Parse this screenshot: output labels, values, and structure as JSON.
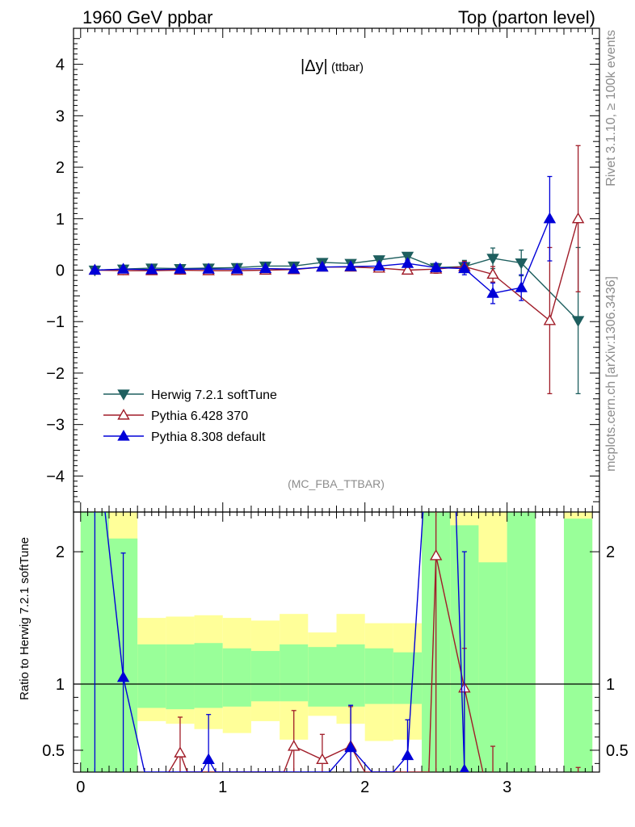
{
  "header": {
    "left": "1960 GeV ppbar",
    "right": "Top (parton level)"
  },
  "side": {
    "rivet": "Rivet 3.1.10, ≥ 100k events",
    "mcplots": "mcplots.cern.ch [arXiv:1306.3436]"
  },
  "chart_data": [
    {
      "type": "line",
      "title": "|Δy| (ttbar)",
      "title_main": "|Δy|",
      "title_sub": "(ttbar)",
      "analysis_tag": "(MC_FBA_TTBAR)",
      "xlim": [
        -0.05,
        3.65
      ],
      "ylim": [
        -4.7,
        4.7
      ],
      "yticks": [
        -4,
        -3,
        -2,
        -1,
        0,
        1,
        2,
        3,
        4
      ],
      "ytick_labels": [
        "−4",
        "−3",
        "−2",
        "−1",
        "0",
        "1",
        "2",
        "3",
        "4"
      ],
      "legend_position": "bottom-left",
      "series": [
        {
          "name": "Herwig 7.2.1 softTune",
          "color": "#1e5f5f",
          "marker": "triangle-down-filled",
          "x": [
            0.1,
            0.3,
            0.5,
            0.7,
            0.9,
            1.1,
            1.3,
            1.5,
            1.7,
            1.9,
            2.1,
            2.3,
            2.5,
            2.7,
            2.9,
            3.1,
            3.5
          ],
          "y": [
            0.0,
            0.02,
            0.04,
            0.03,
            0.04,
            0.05,
            0.08,
            0.08,
            0.15,
            0.13,
            0.2,
            0.27,
            0.05,
            0.07,
            0.23,
            0.14,
            -0.98
          ],
          "err": [
            0.03,
            0.03,
            0.03,
            0.03,
            0.03,
            0.03,
            0.03,
            0.03,
            0.04,
            0.04,
            0.05,
            0.06,
            0.08,
            0.12,
            0.2,
            0.25,
            1.42
          ]
        },
        {
          "name": "Pythia 6.428 370",
          "color": "#a01c28",
          "marker": "triangle-up-open",
          "x": [
            0.1,
            0.3,
            0.5,
            0.7,
            0.9,
            1.1,
            1.3,
            1.5,
            1.7,
            1.9,
            2.1,
            2.3,
            2.5,
            2.7,
            2.9,
            3.3,
            3.5
          ],
          "y": [
            0.0,
            -0.01,
            -0.01,
            0.0,
            -0.01,
            -0.01,
            0.0,
            0.01,
            0.06,
            0.06,
            0.04,
            0.0,
            0.02,
            0.07,
            -0.08,
            -0.98,
            1.0
          ],
          "err": [
            0.04,
            0.04,
            0.04,
            0.04,
            0.04,
            0.04,
            0.04,
            0.04,
            0.05,
            0.05,
            0.06,
            0.06,
            0.08,
            0.1,
            0.15,
            1.42,
            1.42
          ]
        },
        {
          "name": "Pythia 8.308 default",
          "color": "#0000d8",
          "marker": "triangle-up-filled",
          "x": [
            0.1,
            0.3,
            0.5,
            0.7,
            0.9,
            1.1,
            1.3,
            1.5,
            1.7,
            1.9,
            2.1,
            2.3,
            2.5,
            2.7,
            2.9,
            3.1,
            3.3
          ],
          "y": [
            0.0,
            0.02,
            0.01,
            0.02,
            0.02,
            0.02,
            0.03,
            0.02,
            0.06,
            0.07,
            0.08,
            0.13,
            0.05,
            0.03,
            -0.45,
            -0.34,
            1.0
          ],
          "err": [
            0.03,
            0.03,
            0.03,
            0.03,
            0.03,
            0.03,
            0.03,
            0.03,
            0.04,
            0.04,
            0.05,
            0.06,
            0.08,
            0.12,
            0.2,
            0.25,
            0.82
          ]
        }
      ]
    },
    {
      "type": "line",
      "ylabel": "Ratio to Herwig 7.2.1 softTune",
      "xlim": [
        -0.05,
        3.65
      ],
      "ylim": [
        0.335,
        2.3
      ],
      "xticks": [
        0,
        1,
        2,
        3
      ],
      "xtick_labels": [
        "0",
        "1",
        "2",
        "3"
      ],
      "yticks": [
        0.5,
        1,
        2
      ],
      "ytick_labels": [
        "0.5",
        "1",
        "2"
      ],
      "reference_line": 1,
      "uncertainty_bands": {
        "yellow_color": "#ffff99",
        "green_color": "#99ff99",
        "bins": [
          {
            "x0": 0.0,
            "x1": 0.2,
            "y0": 0.0,
            "y1": 3.0,
            "g0": 0.0,
            "g1": 3.0
          },
          {
            "x0": 0.2,
            "x1": 0.4,
            "y0": 0.0,
            "y1": 3.0,
            "g0": 0.0,
            "g1": 2.1
          },
          {
            "x0": 0.4,
            "x1": 0.6,
            "y0": 0.72,
            "y1": 1.5,
            "g0": 0.82,
            "g1": 1.3
          },
          {
            "x0": 0.6,
            "x1": 0.8,
            "y0": 0.7,
            "y1": 1.51,
            "g0": 0.81,
            "g1": 1.3
          },
          {
            "x0": 0.8,
            "x1": 1.0,
            "y0": 0.66,
            "y1": 1.52,
            "g0": 0.82,
            "g1": 1.31
          },
          {
            "x0": 1.0,
            "x1": 1.2,
            "y0": 0.63,
            "y1": 1.5,
            "g0": 0.83,
            "g1": 1.27
          },
          {
            "x0": 1.2,
            "x1": 1.4,
            "y0": 0.72,
            "y1": 1.48,
            "g0": 0.87,
            "g1": 1.25
          },
          {
            "x0": 1.4,
            "x1": 1.6,
            "y0": 0.58,
            "y1": 1.53,
            "g0": 0.87,
            "g1": 1.3
          },
          {
            "x0": 1.6,
            "x1": 1.8,
            "y0": 0.76,
            "y1": 1.39,
            "g0": 0.83,
            "g1": 1.28
          },
          {
            "x0": 1.8,
            "x1": 2.0,
            "y0": 0.7,
            "y1": 1.53,
            "g0": 0.83,
            "g1": 1.3
          },
          {
            "x0": 2.0,
            "x1": 2.2,
            "y0": 0.57,
            "y1": 1.46,
            "g0": 0.85,
            "g1": 1.27
          },
          {
            "x0": 2.2,
            "x1": 2.4,
            "y0": 0.58,
            "y1": 1.46,
            "g0": 0.85,
            "g1": 1.24
          },
          {
            "x0": 2.4,
            "x1": 2.6,
            "y0": 0.0,
            "y1": 3.0,
            "g0": 0.0,
            "g1": 3.0
          },
          {
            "x0": 2.6,
            "x1": 2.8,
            "y0": 0.0,
            "y1": 3.0,
            "g0": 0.0,
            "g1": 2.2
          },
          {
            "x0": 2.8,
            "x1": 3.0,
            "y0": 0.0,
            "y1": 3.0,
            "g0": 0.0,
            "g1": 1.92
          },
          {
            "x0": 3.0,
            "x1": 3.2,
            "y0": 0.0,
            "y1": 3.0,
            "g0": 0.0,
            "g1": 3.0
          },
          {
            "x0": 3.4,
            "x1": 3.6,
            "y0": 0.0,
            "y1": 3.0,
            "g0": 0.0,
            "g1": 2.25
          }
        ]
      },
      "series": [
        {
          "color": "#a01c28",
          "marker": "triangle-up-open",
          "x": [
            0.7,
            1.5,
            1.7,
            1.9,
            2.5,
            2.7
          ],
          "y": [
            0.48,
            0.53,
            0.43,
            0.53,
            1.97,
            0.97
          ],
          "err_low": [
            0.25,
            0.28,
            0.22,
            0.3,
            1.7,
            0.7
          ],
          "err_high": [
            0.27,
            0.27,
            0.19,
            0.3,
            0.4,
            0.3
          ],
          "trace": [
            [
              0.62,
              0.335
            ],
            [
              0.7,
              0.48
            ],
            [
              0.75,
              0.335
            ],
            [
              1.43,
              0.335
            ],
            [
              1.5,
              0.53
            ],
            [
              1.7,
              0.43
            ],
            [
              1.9,
              0.53
            ],
            [
              2.0,
              0.335
            ],
            [
              2.45,
              0.335
            ],
            [
              2.5,
              1.97
            ],
            [
              2.7,
              0.97
            ],
            [
              2.83,
              0.335
            ]
          ],
          "extra_bars": [
            [
              2.9,
              0.26,
              0.53
            ],
            [
              3.5,
              0.2,
              0.37
            ]
          ]
        },
        {
          "color": "#0000d8",
          "marker": "triangle-up-filled",
          "x": [
            0.3,
            0.9,
            1.9,
            2.3,
            2.7
          ],
          "y": [
            1.05,
            0.43,
            0.52,
            0.46,
            0.35
          ],
          "err_low": [
            0.9,
            0.2,
            0.3,
            0.25,
            0.2
          ],
          "err_high": [
            0.94,
            0.34,
            0.32,
            0.27,
            1.65
          ],
          "trace": [
            [
              0.1,
              3.0
            ],
            [
              0.3,
              1.05
            ],
            [
              0.45,
              0.335
            ],
            [
              0.85,
              0.335
            ],
            [
              0.9,
              0.43
            ],
            [
              0.95,
              0.335
            ],
            [
              1.75,
              0.335
            ],
            [
              1.9,
              0.52
            ],
            [
              2.05,
              0.335
            ],
            [
              2.2,
              0.335
            ],
            [
              2.3,
              0.46
            ],
            [
              2.45,
              3.0
            ],
            [
              2.62,
              3.0
            ],
            [
              2.7,
              0.35
            ],
            [
              2.72,
              0.335
            ]
          ],
          "extra_bars": [
            [
              0.1,
              0.0,
              3.0
            ]
          ]
        }
      ]
    }
  ]
}
